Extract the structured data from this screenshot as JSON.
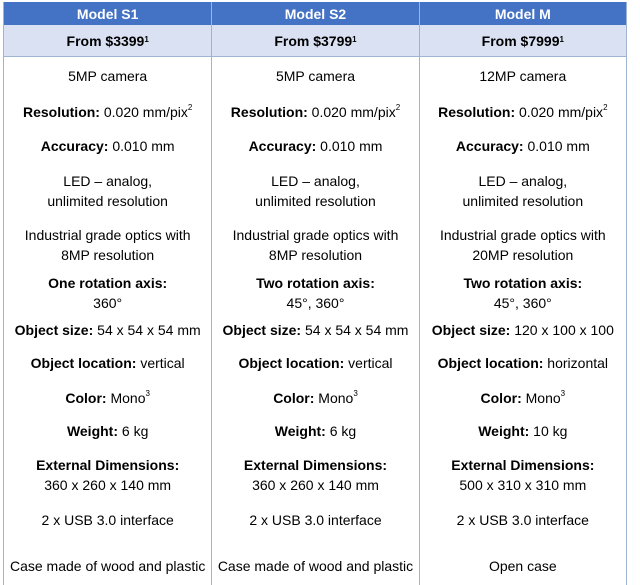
{
  "models": [
    {
      "name": "Model S1",
      "price": "From $3399",
      "price_note": "1",
      "camera": "5MP camera",
      "resolution_label": "Resolution:",
      "resolution_value": " 0.020 mm/pix",
      "resolution_note": "2",
      "accuracy_label": "Accuracy:",
      "accuracy_value": " 0.010 mm",
      "led_line1": "LED – analog,",
      "led_line2": "unlimited resolution",
      "optics_line1": "Industrial grade optics with",
      "optics_line2": "8MP resolution",
      "rotation_label": "One rotation axis:",
      "rotation_value": "360°",
      "size_label": "Object size:",
      "size_value": " 54 x 54 x 54 mm",
      "location_label": "Object location:",
      "location_value": " vertical",
      "color_label": "Color:",
      "color_value": " Mono",
      "color_note": "3",
      "weight_label": "Weight:",
      "weight_value": " 6 kg",
      "dims_label": "External Dimensions:",
      "dims_value": "360 x 260 x 140 mm",
      "usb": "2 x USB 3.0 interface",
      "case": "Case made of wood and plastic"
    },
    {
      "name": "Model S2",
      "price": "From $3799",
      "price_note": "1",
      "camera": "5MP camera",
      "resolution_label": "Resolution:",
      "resolution_value": " 0.020 mm/pix",
      "resolution_note": "2",
      "accuracy_label": "Accuracy:",
      "accuracy_value": " 0.010 mm",
      "led_line1": "LED – analog,",
      "led_line2": "unlimited resolution",
      "optics_line1": "Industrial grade optics with",
      "optics_line2": "8MP resolution",
      "rotation_label": "Two rotation axis:",
      "rotation_value": "45°, 360°",
      "size_label": "Object size:",
      "size_value": " 54 x 54 x 54 mm",
      "location_label": "Object location:",
      "location_value": " vertical",
      "color_label": "Color:",
      "color_value": " Mono",
      "color_note": "3",
      "weight_label": "Weight:",
      "weight_value": " 6 kg",
      "dims_label": "External Dimensions:",
      "dims_value": "360 x 260 x 140 mm",
      "usb": "2 x USB 3.0 interface",
      "case": "Case made of wood and plastic"
    },
    {
      "name": "Model M",
      "price": "From $7999",
      "price_note": "1",
      "camera": "12MP camera",
      "resolution_label": "Resolution:",
      "resolution_value": " 0.020 mm/pix",
      "resolution_note": "2",
      "accuracy_label": "Accuracy:",
      "accuracy_value": " 0.010 mm",
      "led_line1": "LED – analog,",
      "led_line2": "unlimited resolution",
      "optics_line1": "Industrial grade optics with",
      "optics_line2": "20MP resolution",
      "rotation_label": "Two rotation axis:",
      "rotation_value": "45°, 360°",
      "size_label": "Object size:",
      "size_value": " 120 x 100 x 100",
      "location_label": "Object location:",
      "location_value": " horizontal",
      "color_label": "Color:",
      "color_value": " Mono",
      "color_note": "3",
      "weight_label": "Weight:",
      "weight_value": " 10 kg",
      "dims_label": "External Dimensions:",
      "dims_value": "500 x 310 x 310 mm",
      "usb": "2 x USB 3.0 interface",
      "case": "Open case"
    }
  ],
  "colors": {
    "header_bg": "#4472c4",
    "price_bg": "#d9e1f2",
    "border": "#9fb3d3"
  }
}
